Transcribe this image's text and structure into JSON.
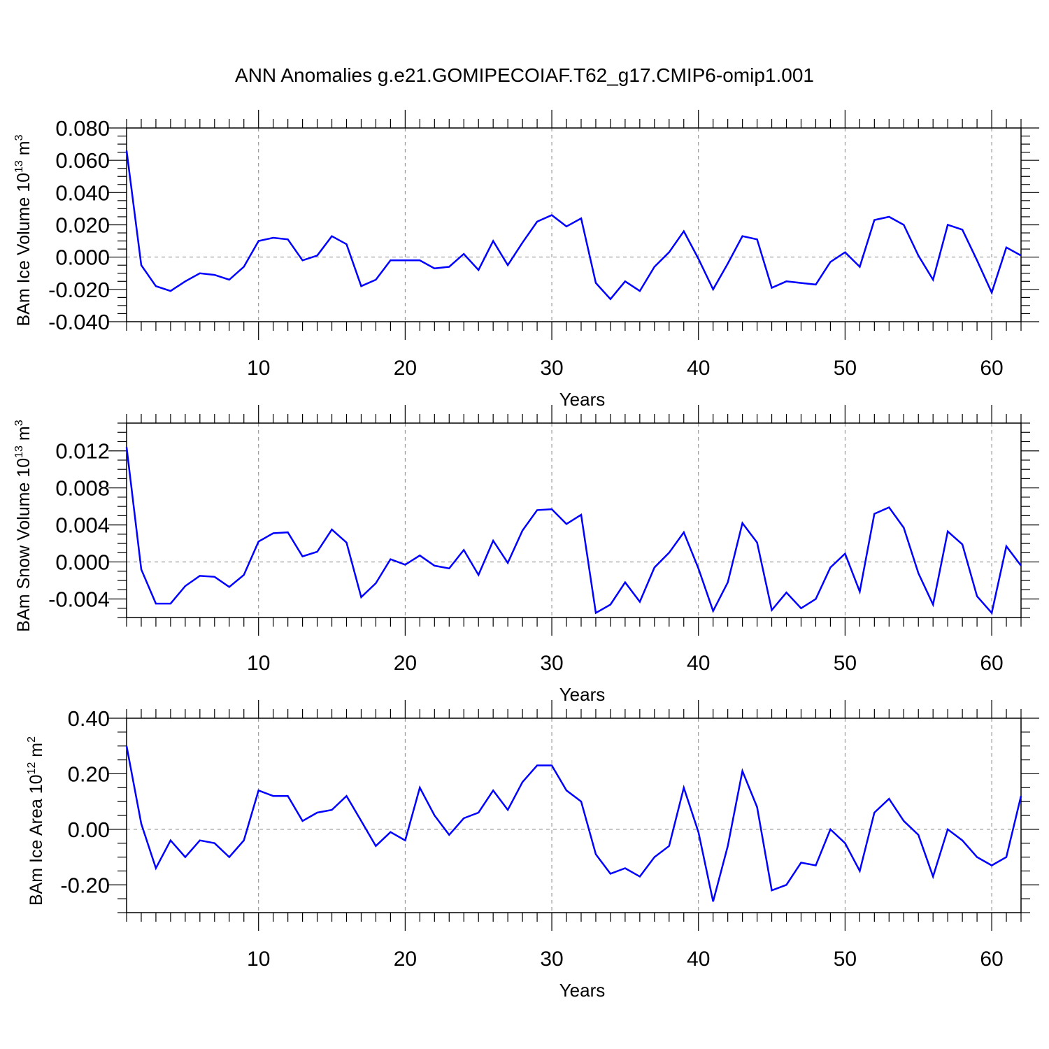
{
  "page_title": "ANN Anomalies g.e21.GOMIPECOIAF.T62_g17.CMIP6-omip1.001",
  "chart_data": [
    {
      "type": "line",
      "xlabel": "Years",
      "ylabel": "BAm Ice Volume 10",
      "ylabel_exp": "13",
      "ylabel_unit": " m",
      "ylabel_unit_exp": "3",
      "xlim": [
        1,
        62
      ],
      "ylim": [
        -0.04,
        0.08
      ],
      "xticks": [
        "10",
        "20",
        "30",
        "40",
        "50",
        "60"
      ],
      "yticks": [
        "0.080",
        "0.060",
        "0.040",
        "0.020",
        "0.000",
        "-0.020",
        "-0.040"
      ],
      "line_color": "#0000ff",
      "x": [
        1,
        2,
        3,
        4,
        5,
        6,
        7,
        8,
        9,
        10,
        11,
        12,
        13,
        14,
        15,
        16,
        17,
        18,
        19,
        20,
        21,
        22,
        23,
        24,
        25,
        26,
        27,
        28,
        29,
        30,
        31,
        32,
        33,
        34,
        35,
        36,
        37,
        38,
        39,
        40,
        41,
        42,
        43,
        44,
        45,
        46,
        47,
        48,
        49,
        50,
        51,
        52,
        53,
        54,
        55,
        56,
        57,
        58,
        59,
        60,
        61,
        62
      ],
      "values": [
        0.066,
        -0.005,
        -0.018,
        -0.021,
        -0.015,
        -0.01,
        -0.011,
        -0.014,
        -0.006,
        0.01,
        0.012,
        0.011,
        -0.002,
        0.001,
        0.013,
        0.008,
        -0.018,
        -0.014,
        -0.002,
        -0.002,
        -0.002,
        -0.007,
        -0.006,
        0.002,
        -0.008,
        0.01,
        -0.005,
        0.009,
        0.022,
        0.026,
        0.019,
        0.024,
        -0.016,
        -0.026,
        -0.015,
        -0.021,
        -0.006,
        0.003,
        0.016,
        -0.001,
        -0.02,
        -0.004,
        0.013,
        0.011,
        -0.019,
        -0.015,
        -0.016,
        -0.017,
        -0.003,
        0.003,
        -0.006,
        0.023,
        0.025,
        0.02,
        0.001,
        -0.014,
        0.02,
        0.017,
        -0.002,
        -0.022,
        0.006,
        0.001
      ]
    },
    {
      "type": "line",
      "xlabel": "Years",
      "ylabel": "BAm Snow Volume 10",
      "ylabel_exp": "13",
      "ylabel_unit": " m",
      "ylabel_unit_exp": "3",
      "xlim": [
        1,
        62
      ],
      "ylim": [
        -0.006,
        0.015
      ],
      "xticks": [
        "10",
        "20",
        "30",
        "40",
        "50",
        "60"
      ],
      "yticks": [
        "0.012",
        "0.008",
        "0.004",
        "0.000",
        "-0.004"
      ],
      "line_color": "#0000ff",
      "x": [
        1,
        2,
        3,
        4,
        5,
        6,
        7,
        8,
        9,
        10,
        11,
        12,
        13,
        14,
        15,
        16,
        17,
        18,
        19,
        20,
        21,
        22,
        23,
        24,
        25,
        26,
        27,
        28,
        29,
        30,
        31,
        32,
        33,
        34,
        35,
        36,
        37,
        38,
        39,
        40,
        41,
        42,
        43,
        44,
        45,
        46,
        47,
        48,
        49,
        50,
        51,
        52,
        53,
        54,
        55,
        56,
        57,
        58,
        59,
        60,
        61,
        62
      ],
      "values": [
        0.0124,
        -0.0008,
        -0.0045,
        -0.0045,
        -0.0026,
        -0.0015,
        -0.0016,
        -0.0027,
        -0.0014,
        0.0022,
        0.0031,
        0.0032,
        0.0006,
        0.0011,
        0.0035,
        0.0021,
        -0.0038,
        -0.0023,
        0.0003,
        -0.0003,
        0.0007,
        -0.0004,
        -0.0007,
        0.0013,
        -0.0014,
        0.0023,
        -0.0001,
        0.0034,
        0.0056,
        0.0057,
        0.0041,
        0.0051,
        -0.0055,
        -0.0046,
        -0.0022,
        -0.0043,
        -0.0006,
        0.001,
        0.0032,
        -0.0007,
        -0.0053,
        -0.0022,
        0.0042,
        0.0021,
        -0.0052,
        -0.0033,
        -0.005,
        -0.004,
        -0.0006,
        0.0009,
        -0.0032,
        0.0052,
        0.0059,
        0.0037,
        -0.0012,
        -0.0046,
        0.0033,
        0.0019,
        -0.0037,
        -0.0055,
        0.0017,
        -0.0004
      ]
    },
    {
      "type": "line",
      "xlabel": "Years",
      "ylabel": "BAm Ice Area 10",
      "ylabel_exp": "12",
      "ylabel_unit": " m",
      "ylabel_unit_exp": "2",
      "xlim": [
        1,
        62
      ],
      "ylim": [
        -0.3,
        0.4
      ],
      "xticks": [
        "10",
        "20",
        "30",
        "40",
        "50",
        "60"
      ],
      "yticks": [
        "0.40",
        "0.20",
        "0.00",
        "-0.20"
      ],
      "line_color": "#0000ff",
      "x": [
        1,
        2,
        3,
        4,
        5,
        6,
        7,
        8,
        9,
        10,
        11,
        12,
        13,
        14,
        15,
        16,
        17,
        18,
        19,
        20,
        21,
        22,
        23,
        24,
        25,
        26,
        27,
        28,
        29,
        30,
        31,
        32,
        33,
        34,
        35,
        36,
        37,
        38,
        39,
        40,
        41,
        42,
        43,
        44,
        45,
        46,
        47,
        48,
        49,
        50,
        51,
        52,
        53,
        54,
        55,
        56,
        57,
        58,
        59,
        60,
        61,
        62
      ],
      "values": [
        0.3,
        0.02,
        -0.14,
        -0.04,
        -0.1,
        -0.04,
        -0.05,
        -0.1,
        -0.04,
        0.14,
        0.12,
        0.12,
        0.03,
        0.06,
        0.07,
        0.12,
        0.03,
        -0.06,
        -0.01,
        -0.04,
        0.15,
        0.05,
        -0.02,
        0.04,
        0.06,
        0.14,
        0.07,
        0.17,
        0.23,
        0.23,
        0.14,
        0.1,
        -0.09,
        -0.16,
        -0.14,
        -0.17,
        -0.1,
        -0.06,
        0.15,
        -0.01,
        -0.26,
        -0.06,
        0.21,
        0.08,
        -0.22,
        -0.2,
        -0.12,
        -0.13,
        0.0,
        -0.05,
        -0.15,
        0.06,
        0.11,
        0.03,
        -0.02,
        -0.17,
        0.0,
        -0.04,
        -0.1,
        -0.13,
        -0.1,
        0.12
      ]
    }
  ]
}
